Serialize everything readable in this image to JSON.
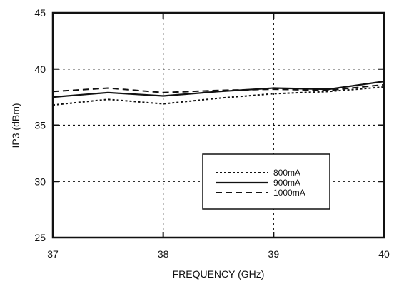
{
  "chart_data": {
    "type": "line",
    "xlabel": "FREQUENCY (GHz)",
    "ylabel": "IP3 (dBm)",
    "xlim": [
      37,
      40
    ],
    "ylim": [
      25,
      45
    ],
    "x_ticks": [
      "37",
      "38",
      "39",
      "40"
    ],
    "y_ticks": [
      "25",
      "30",
      "35",
      "40",
      "45"
    ],
    "grid": true,
    "legend_position": "lower-right",
    "series": [
      {
        "name": "800mA",
        "line_style": "dotted",
        "color": "#111111",
        "points": [
          [
            37,
            36.8
          ],
          [
            37.5,
            37.3
          ],
          [
            38,
            36.9
          ],
          [
            38.5,
            37.4
          ],
          [
            39,
            37.8
          ],
          [
            39.5,
            38.0
          ],
          [
            40,
            38.4
          ]
        ]
      },
      {
        "name": "900mA",
        "line_style": "solid",
        "color": "#111111",
        "points": [
          [
            37,
            37.5
          ],
          [
            37.5,
            37.9
          ],
          [
            38,
            37.6
          ],
          [
            38.5,
            38.0
          ],
          [
            39,
            38.3
          ],
          [
            39.5,
            38.2
          ],
          [
            40,
            38.9
          ]
        ]
      },
      {
        "name": "1000mA",
        "line_style": "dashed",
        "color": "#111111",
        "points": [
          [
            37,
            38.0
          ],
          [
            37.5,
            38.3
          ],
          [
            38,
            37.9
          ],
          [
            38.5,
            38.1
          ],
          [
            39,
            38.2
          ],
          [
            39.5,
            38.1
          ],
          [
            40,
            38.6
          ]
        ]
      }
    ]
  }
}
